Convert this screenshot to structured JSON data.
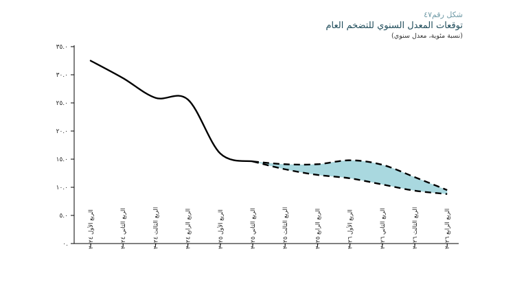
{
  "header": {
    "figure_number": "شكل رقم٤٧",
    "title": "توقعات المعدل السنوي للتضخم العام",
    "subtitle": "(نسبة مئوية، معدل سنوي)"
  },
  "chart_data": {
    "type": "line",
    "title": "توقعات المعدل السنوي للتضخم العام",
    "subtitle": "(نسبة مئوية، معدل سنوي)",
    "xlabel": "",
    "ylabel": "",
    "ylim": [
      0,
      35
    ],
    "ytick_values": [
      0,
      5,
      10,
      15,
      20,
      25,
      30,
      35
    ],
    "ytick_labels": [
      "٠.",
      "٥.٠",
      "١٠.٠",
      "١٥.٠",
      "٢٠.٠",
      "٢٥.٠",
      "٣٠.٠",
      "٣٥.٠"
    ],
    "categories": [
      "الربع الأول ٢٠٢٤",
      "الربع الثاني ٢٠٢٤",
      "الربع الثالث ٢٠٢٤",
      "الربع الرابع ٢٠٢٤",
      "الربع الأول ٢٠٢٥",
      "الربع الثاني ٢٠٢٥",
      "الربع الثالث ٢٠٢٥",
      "الربع الرابع ٢٠٢٥",
      "الربع الأول ٢٠٢٦",
      "الربع الثاني ٢٠٢٦",
      "الربع الثالث ٢٠٢٦",
      "الربع الرابع ٢٠٢٦"
    ],
    "series": [
      {
        "name": "actual",
        "style": "solid",
        "color": "#000000",
        "values": [
          32.5,
          29.4,
          25.9,
          25.6,
          16.0,
          14.6,
          null,
          null,
          null,
          null,
          null,
          null
        ]
      },
      {
        "name": "upper_bound",
        "style": "dashed",
        "color": "#000000",
        "values": [
          null,
          null,
          null,
          null,
          null,
          14.6,
          14.1,
          14.1,
          14.8,
          14.0,
          11.8,
          9.5
        ]
      },
      {
        "name": "lower_bound",
        "style": "dashed",
        "color": "#000000",
        "values": [
          null,
          null,
          null,
          null,
          null,
          14.6,
          13.2,
          12.2,
          11.6,
          10.5,
          9.4,
          8.8
        ]
      }
    ],
    "band": {
      "name": "forecast-range",
      "color": "#a9d8df",
      "between": [
        "upper_bound",
        "lower_bound"
      ]
    }
  }
}
